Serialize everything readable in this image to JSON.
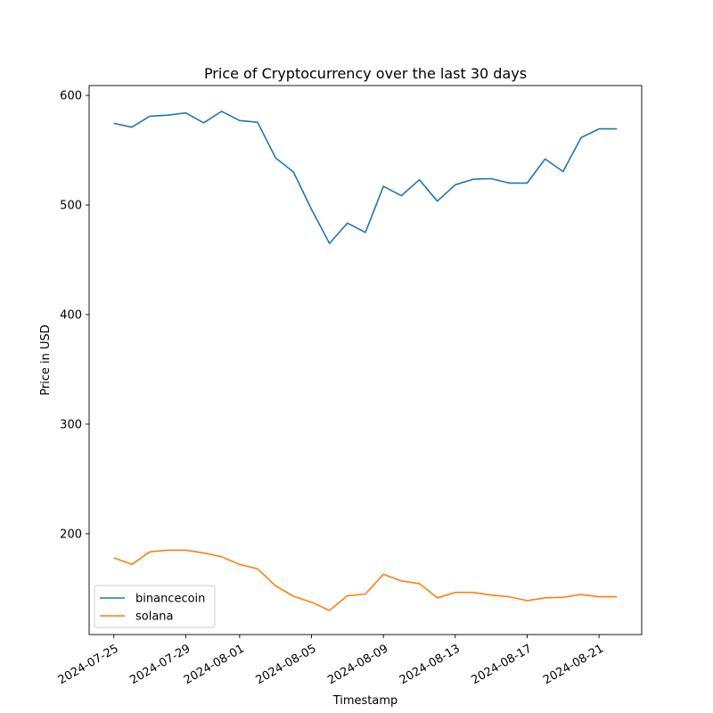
{
  "chart_data": {
    "type": "line",
    "title": "Price of Cryptocurrency over the last 30 days",
    "xlabel": "Timestamp",
    "ylabel": "Price in USD",
    "x": [
      "2024-07-25",
      "2024-07-26",
      "2024-07-27",
      "2024-07-28",
      "2024-07-29",
      "2024-07-30",
      "2024-07-31",
      "2024-08-01",
      "2024-08-02",
      "2024-08-03",
      "2024-08-04",
      "2024-08-05",
      "2024-08-06",
      "2024-08-07",
      "2024-08-08",
      "2024-08-09",
      "2024-08-10",
      "2024-08-11",
      "2024-08-12",
      "2024-08-13",
      "2024-08-14",
      "2024-08-15",
      "2024-08-16",
      "2024-08-17",
      "2024-08-18",
      "2024-08-19",
      "2024-08-20",
      "2024-08-21",
      "2024-08-22"
    ],
    "xticks": [
      "2024-07-25",
      "2024-07-29",
      "2024-08-01",
      "2024-08-05",
      "2024-08-09",
      "2024-08-13",
      "2024-08-17",
      "2024-08-21"
    ],
    "yticks": [
      200,
      300,
      400,
      500,
      600
    ],
    "xlim": [
      "2024-07-23 15:00",
      "2024-08-23 09:00"
    ],
    "ylim": [
      108,
      609
    ],
    "grid": false,
    "legend": "lower-left",
    "series": [
      {
        "name": "binancecoin",
        "color": "#1f77b4",
        "values": [
          574.5,
          571,
          581,
          582,
          584,
          575,
          585.5,
          577,
          575.5,
          543,
          530,
          496,
          465,
          483.5,
          475,
          517,
          508.5,
          523,
          503.5,
          518.5,
          523.5,
          524,
          520,
          520,
          542,
          530.5,
          561.5,
          569.5,
          569.5
        ]
      },
      {
        "name": "solana",
        "color": "#ff7f0e",
        "values": [
          178,
          172,
          183.5,
          185,
          185,
          182.5,
          179,
          172,
          168,
          152.5,
          143,
          137.5,
          130,
          143.5,
          145,
          163,
          157,
          154.5,
          141.5,
          146.5,
          146.5,
          144,
          142.5,
          139,
          141.5,
          142,
          144.5,
          142.5,
          142.5
        ]
      }
    ]
  }
}
